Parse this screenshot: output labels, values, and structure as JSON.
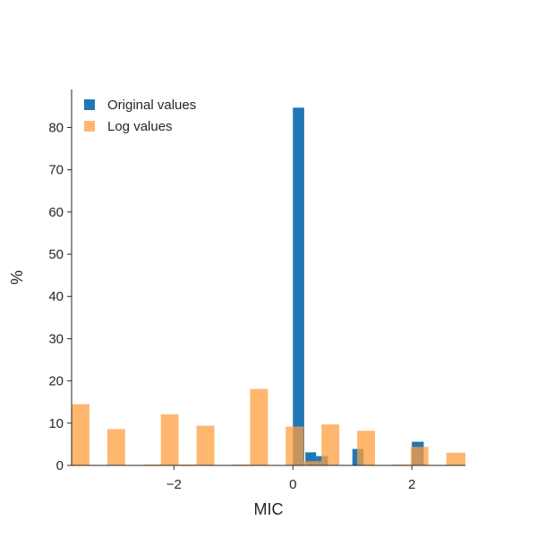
{
  "chart_data": {
    "type": "bar",
    "xlabel": "MIC",
    "ylabel": "%",
    "xlim": [
      -3.72,
      2.9
    ],
    "ylim": [
      0,
      89
    ],
    "grid": false,
    "legend_position": "top-left",
    "x_ticks": [
      {
        "value": -2,
        "label": "−2"
      },
      {
        "value": 0,
        "label": "0"
      },
      {
        "value": 2,
        "label": "2"
      }
    ],
    "y_ticks": [
      {
        "value": 0,
        "label": "0"
      },
      {
        "value": 10,
        "label": "10"
      },
      {
        "value": 20,
        "label": "20"
      },
      {
        "value": 30,
        "label": "30"
      },
      {
        "value": 40,
        "label": "40"
      },
      {
        "value": 50,
        "label": "50"
      },
      {
        "value": 60,
        "label": "60"
      },
      {
        "value": 70,
        "label": "70"
      },
      {
        "value": 80,
        "label": "80"
      }
    ],
    "series": [
      {
        "name": "Original values",
        "color": "#1f77b4",
        "opacity": 1,
        "bars": [
          {
            "x0": 0.0,
            "x1": 0.19,
            "value": 84.7
          },
          {
            "x0": 0.21,
            "x1": 0.39,
            "value": 3.1
          },
          {
            "x0": 0.39,
            "x1": 0.59,
            "value": 2.2
          },
          {
            "x0": 1.0,
            "x1": 1.19,
            "value": 3.9
          },
          {
            "x0": 2.0,
            "x1": 2.2,
            "value": 5.6
          }
        ]
      },
      {
        "name": "Log values",
        "color": "#ff9f40",
        "opacity": 0.75,
        "bars": [
          {
            "x0": -3.72,
            "x1": -3.42,
            "value": 14.5
          },
          {
            "x0": -3.12,
            "x1": -2.82,
            "value": 8.6
          },
          {
            "x0": -2.52,
            "x1": -2.22,
            "value": 0.2
          },
          {
            "x0": -2.22,
            "x1": -1.92,
            "value": 12.1
          },
          {
            "x0": -1.92,
            "x1": -1.62,
            "value": 0.2
          },
          {
            "x0": -1.62,
            "x1": -1.32,
            "value": 9.4
          },
          {
            "x0": -1.02,
            "x1": -0.72,
            "value": 0.2
          },
          {
            "x0": -0.72,
            "x1": -0.42,
            "value": 18.1
          },
          {
            "x0": -0.12,
            "x1": 0.18,
            "value": 9.2
          },
          {
            "x0": 0.18,
            "x1": 0.48,
            "value": 1.0
          },
          {
            "x0": 0.48,
            "x1": 0.78,
            "value": 9.7
          },
          {
            "x0": 1.08,
            "x1": 1.38,
            "value": 8.2
          },
          {
            "x0": 1.68,
            "x1": 1.98,
            "value": 0.2
          },
          {
            "x0": 1.98,
            "x1": 2.28,
            "value": 4.4
          },
          {
            "x0": 2.58,
            "x1": 2.9,
            "value": 3.0
          }
        ]
      }
    ]
  }
}
